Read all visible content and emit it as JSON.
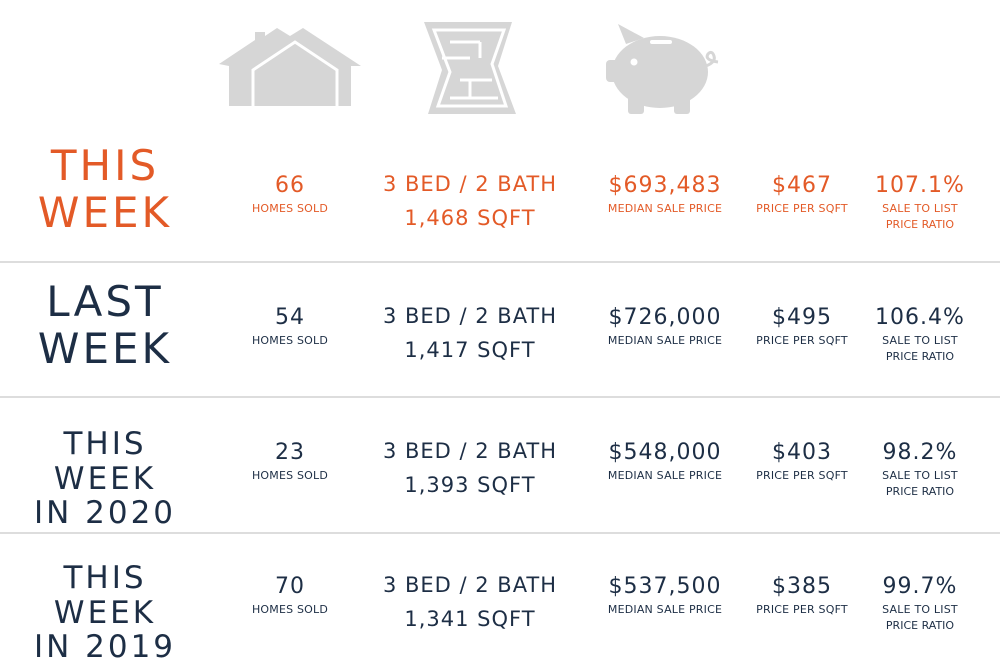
{
  "colors": {
    "current": "#e35a27",
    "past": "#1d2e45",
    "icon": "#d6d6d6",
    "divider": "#dddddd"
  },
  "icons": [
    "houses-icon",
    "floorplan-icon",
    "piggy-bank-icon"
  ],
  "rows": [
    {
      "label_line1": "THIS",
      "label_line2": "WEEK",
      "homes_sold": "66",
      "homes_sold_label": "HOMES SOLD",
      "beds_baths": "3 BED / 2 BATH",
      "sqft": "1,468 SQFT",
      "median_price": "$693,483",
      "median_price_label": "MEDIAN SALE PRICE",
      "price_per_sqft": "$467",
      "price_per_sqft_label": "PRICE PER SQFT",
      "sale_to_list": "107.1%",
      "sale_to_list_label1": "SALE TO LIST",
      "sale_to_list_label2": "PRICE RATIO"
    },
    {
      "label_line1": "LAST",
      "label_line2": "WEEK",
      "homes_sold": "54",
      "homes_sold_label": "HOMES SOLD",
      "beds_baths": "3 BED / 2 BATH",
      "sqft": "1,417 SQFT",
      "median_price": "$726,000",
      "median_price_label": "MEDIAN SALE PRICE",
      "price_per_sqft": "$495",
      "price_per_sqft_label": "PRICE PER SQFT",
      "sale_to_list": "106.4%",
      "sale_to_list_label1": "SALE TO LIST",
      "sale_to_list_label2": "PRICE RATIO"
    },
    {
      "label_line1": "THIS WEEK",
      "label_line2": "IN 2020",
      "homes_sold": "23",
      "homes_sold_label": "HOMES SOLD",
      "beds_baths": "3 BED / 2 BATH",
      "sqft": "1,393 SQFT",
      "median_price": "$548,000",
      "median_price_label": "MEDIAN SALE PRICE",
      "price_per_sqft": "$403",
      "price_per_sqft_label": "PRICE PER SQFT",
      "sale_to_list": "98.2%",
      "sale_to_list_label1": "SALE TO LIST",
      "sale_to_list_label2": "PRICE RATIO"
    },
    {
      "label_line1": "THIS WEEK",
      "label_line2": "IN 2019",
      "homes_sold": "70",
      "homes_sold_label": "HOMES SOLD",
      "beds_baths": "3 BED / 2 BATH",
      "sqft": "1,341 SQFT",
      "median_price": "$537,500",
      "median_price_label": "MEDIAN SALE PRICE",
      "price_per_sqft": "$385",
      "price_per_sqft_label": "PRICE PER SQFT",
      "sale_to_list": "99.7%",
      "sale_to_list_label1": "SALE TO LIST",
      "sale_to_list_label2": "PRICE RATIO"
    }
  ]
}
